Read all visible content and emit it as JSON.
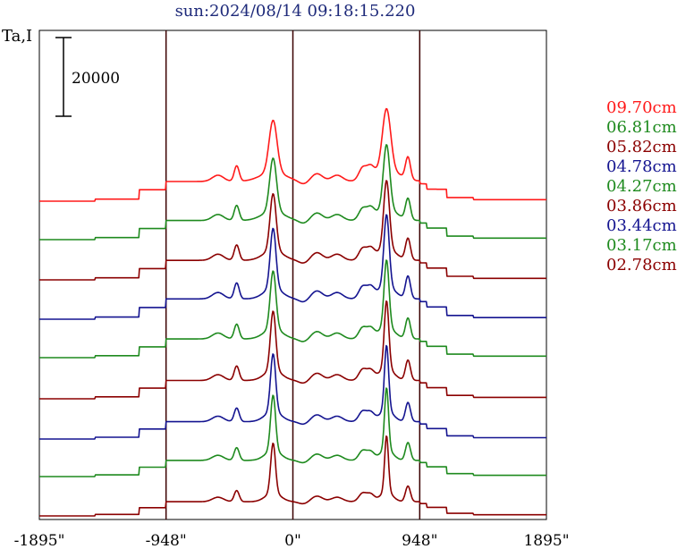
{
  "chart_data": {
    "type": "line",
    "title": "sun:2024/08/14 09:18:15.220",
    "ylabel": "Ta,I",
    "scale_bar_label": "20000",
    "scale_bar_value": 20000,
    "x_tick_labels": [
      "-1895\"",
      "-948\"",
      "0\"",
      "948\"",
      "1895\""
    ],
    "x_ticks": [
      -1895,
      -948,
      0,
      948,
      1895
    ],
    "xlim": [
      -1895,
      1895
    ],
    "vertical_lines": [
      -948,
      0,
      948
    ],
    "grid": false,
    "legend_position": "right",
    "series": [
      {
        "name": "09.70cm",
        "color": "#ff1a1a",
        "baseline": 225,
        "scale": 1.0,
        "peaks": [
          [
            -148,
            1.0,
            42
          ],
          [
            700,
            1.19,
            44
          ]
        ]
      },
      {
        "name": "06.81cm",
        "color": "#1e8a1e",
        "baseline": 268,
        "scale": 0.97,
        "peaks": [
          [
            -148,
            1.05,
            36
          ],
          [
            700,
            1.28,
            34
          ]
        ]
      },
      {
        "name": "05.82cm",
        "color": "#8b0000",
        "baseline": 313,
        "scale": 0.99,
        "peaks": [
          [
            -148,
            1.1,
            32
          ],
          [
            700,
            1.32,
            30
          ]
        ]
      },
      {
        "name": "04.78cm",
        "color": "#141490",
        "baseline": 357,
        "scale": 1.03,
        "peaks": [
          [
            -148,
            1.12,
            30
          ],
          [
            700,
            1.34,
            28
          ]
        ]
      },
      {
        "name": "04.27cm",
        "color": "#1e8a1e",
        "baseline": 400,
        "scale": 0.95,
        "peaks": [
          [
            -148,
            1.17,
            30
          ],
          [
            700,
            1.36,
            26
          ]
        ]
      },
      {
        "name": "03.86cm",
        "color": "#8b0000",
        "baseline": 446,
        "scale": 0.93,
        "peaks": [
          [
            -148,
            1.22,
            28
          ],
          [
            700,
            1.4,
            24
          ]
        ]
      },
      {
        "name": "03.44cm",
        "color": "#141490",
        "baseline": 491,
        "scale": 0.88,
        "peaks": [
          [
            -148,
            1.26,
            27
          ],
          [
            700,
            1.42,
            22
          ]
        ]
      },
      {
        "name": "03.17cm",
        "color": "#1e8a1e",
        "baseline": 533,
        "scale": 0.82,
        "peaks": [
          [
            -148,
            1.3,
            26
          ],
          [
            700,
            1.45,
            21
          ]
        ]
      },
      {
        "name": "02.78cm",
        "color": "#8b0000",
        "baseline": 577,
        "scale": 0.72,
        "peaks": [
          [
            -148,
            1.33,
            25
          ],
          [
            700,
            1.5,
            20
          ]
        ]
      }
    ]
  }
}
